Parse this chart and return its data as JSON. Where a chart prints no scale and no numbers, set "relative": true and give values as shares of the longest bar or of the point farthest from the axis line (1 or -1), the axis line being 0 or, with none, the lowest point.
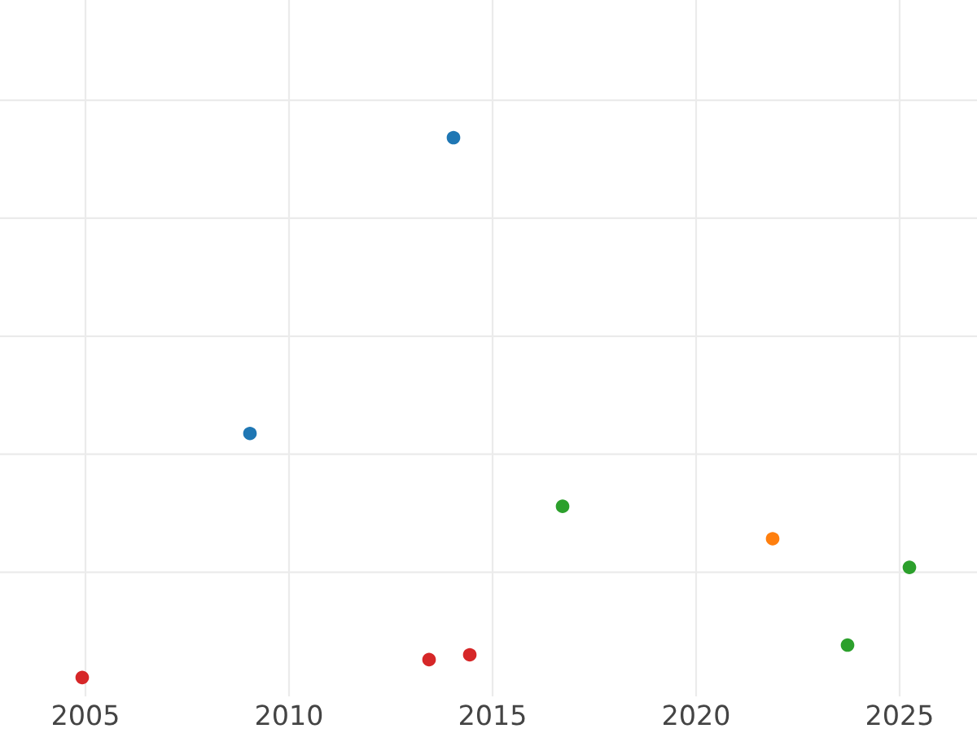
{
  "chart_data": {
    "type": "scatter",
    "relative": true,
    "xlim": [
      2002.9,
      2026.9
    ],
    "xticks": [
      2005,
      2010,
      2015,
      2020,
      2025
    ],
    "grid": true,
    "marker": "circle",
    "legend": false,
    "series": [
      {
        "color": "#1f77b4",
        "x": [
          2014.04,
          2009.04
        ],
        "values": [
          1,
          0.452
        ]
      },
      {
        "color": "#2ca02c",
        "x": [
          2016.72,
          2023.72,
          2025.24
        ],
        "values": [
          0.317,
          0.06,
          0.204
        ]
      },
      {
        "color": "#ff7f0e",
        "x": [
          2021.88
        ],
        "values": [
          0.257
        ]
      },
      {
        "color": "#d62728",
        "x": [
          2004.92,
          2013.44,
          2014.44
        ],
        "values": [
          0,
          0.033,
          0.042
        ]
      }
    ]
  }
}
